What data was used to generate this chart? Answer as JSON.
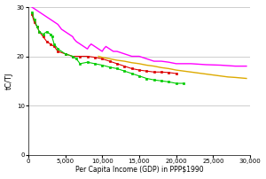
{
  "title": "",
  "xlabel": "Per Capita Income (GDP) in PPP$1990",
  "ylabel": "tC/TJ",
  "xlim": [
    0,
    30000
  ],
  "ylim": [
    0,
    30
  ],
  "xticks": [
    0,
    5000,
    10000,
    15000,
    20000,
    25000,
    30000
  ],
  "yticks": [
    0,
    10,
    20,
    30
  ],
  "series": [
    {
      "name": "magenta_line",
      "color": "#ff00ff",
      "x": [
        500,
        1000,
        1500,
        2000,
        2500,
        3000,
        3500,
        4000,
        4500,
        5000,
        5500,
        6000,
        6200,
        6500,
        7000,
        7500,
        8000,
        8200,
        8500,
        9000,
        9500,
        10000,
        10200,
        10500,
        11000,
        11500,
        12000,
        13000,
        14000,
        15000,
        16000,
        17000,
        18000,
        19000,
        20000,
        22000,
        24000,
        26000,
        28000,
        29500
      ],
      "y": [
        30,
        29.5,
        29,
        28.5,
        28,
        27.5,
        27,
        26.5,
        25.5,
        25,
        24.5,
        24,
        23.5,
        23,
        22.5,
        22,
        21.5,
        22,
        22.5,
        22,
        21.5,
        21,
        21.5,
        22,
        21.5,
        21,
        21,
        20.5,
        20,
        20,
        19.5,
        19,
        19,
        18.8,
        18.5,
        18.5,
        18.3,
        18.2,
        18,
        18
      ],
      "marker": null,
      "linewidth": 1.0
    },
    {
      "name": "red_markers",
      "color": "#dd0000",
      "x": [
        500,
        800,
        1200,
        1500,
        2000,
        2500,
        3000,
        3500,
        4000,
        5000,
        6000,
        7000,
        8000,
        9000,
        10000,
        11000,
        12000,
        13000,
        14000,
        15000,
        16000,
        17000,
        18000,
        19000,
        20000
      ],
      "y": [
        28.5,
        27,
        26,
        25,
        24,
        23,
        22.5,
        22,
        21,
        20.5,
        20,
        20,
        20,
        19.8,
        19.5,
        19,
        18.5,
        18,
        17.5,
        17.2,
        17,
        16.8,
        16.8,
        16.7,
        16.5
      ],
      "marker": "s",
      "markersize": 2,
      "linewidth": 0.8
    },
    {
      "name": "green_markers",
      "color": "#00cc00",
      "x": [
        500,
        800,
        1200,
        1500,
        2000,
        2500,
        3000,
        3200,
        3500,
        4000,
        5000,
        6000,
        6500,
        7000,
        8000,
        9000,
        10000,
        11000,
        12000,
        13000,
        14000,
        15000,
        16000,
        17000,
        18000,
        19000,
        20000,
        21000
      ],
      "y": [
        29,
        27.5,
        26,
        25,
        24.5,
        25,
        24.5,
        24,
        22.5,
        21.5,
        20.5,
        20,
        19.5,
        18.5,
        18.8,
        18.5,
        18.2,
        17.8,
        17.5,
        17,
        16.5,
        16,
        15.5,
        15.2,
        15,
        14.8,
        14.5,
        14.5
      ],
      "marker": "s",
      "markersize": 2,
      "linewidth": 0.8
    },
    {
      "name": "orange_line",
      "color": "#ddaa00",
      "x": [
        9500,
        10000,
        11000,
        12000,
        13000,
        14000,
        15000,
        16000,
        17000,
        18000,
        19000,
        20000,
        21000,
        22000,
        23000,
        24000,
        25000,
        26000,
        27000,
        28000,
        29500
      ],
      "y": [
        20,
        19.8,
        19.5,
        19.2,
        19.0,
        18.7,
        18.5,
        18.2,
        18.0,
        17.7,
        17.5,
        17.2,
        17.0,
        16.8,
        16.6,
        16.4,
        16.2,
        16.0,
        15.8,
        15.7,
        15.5
      ],
      "marker": null,
      "linewidth": 1.0
    }
  ]
}
